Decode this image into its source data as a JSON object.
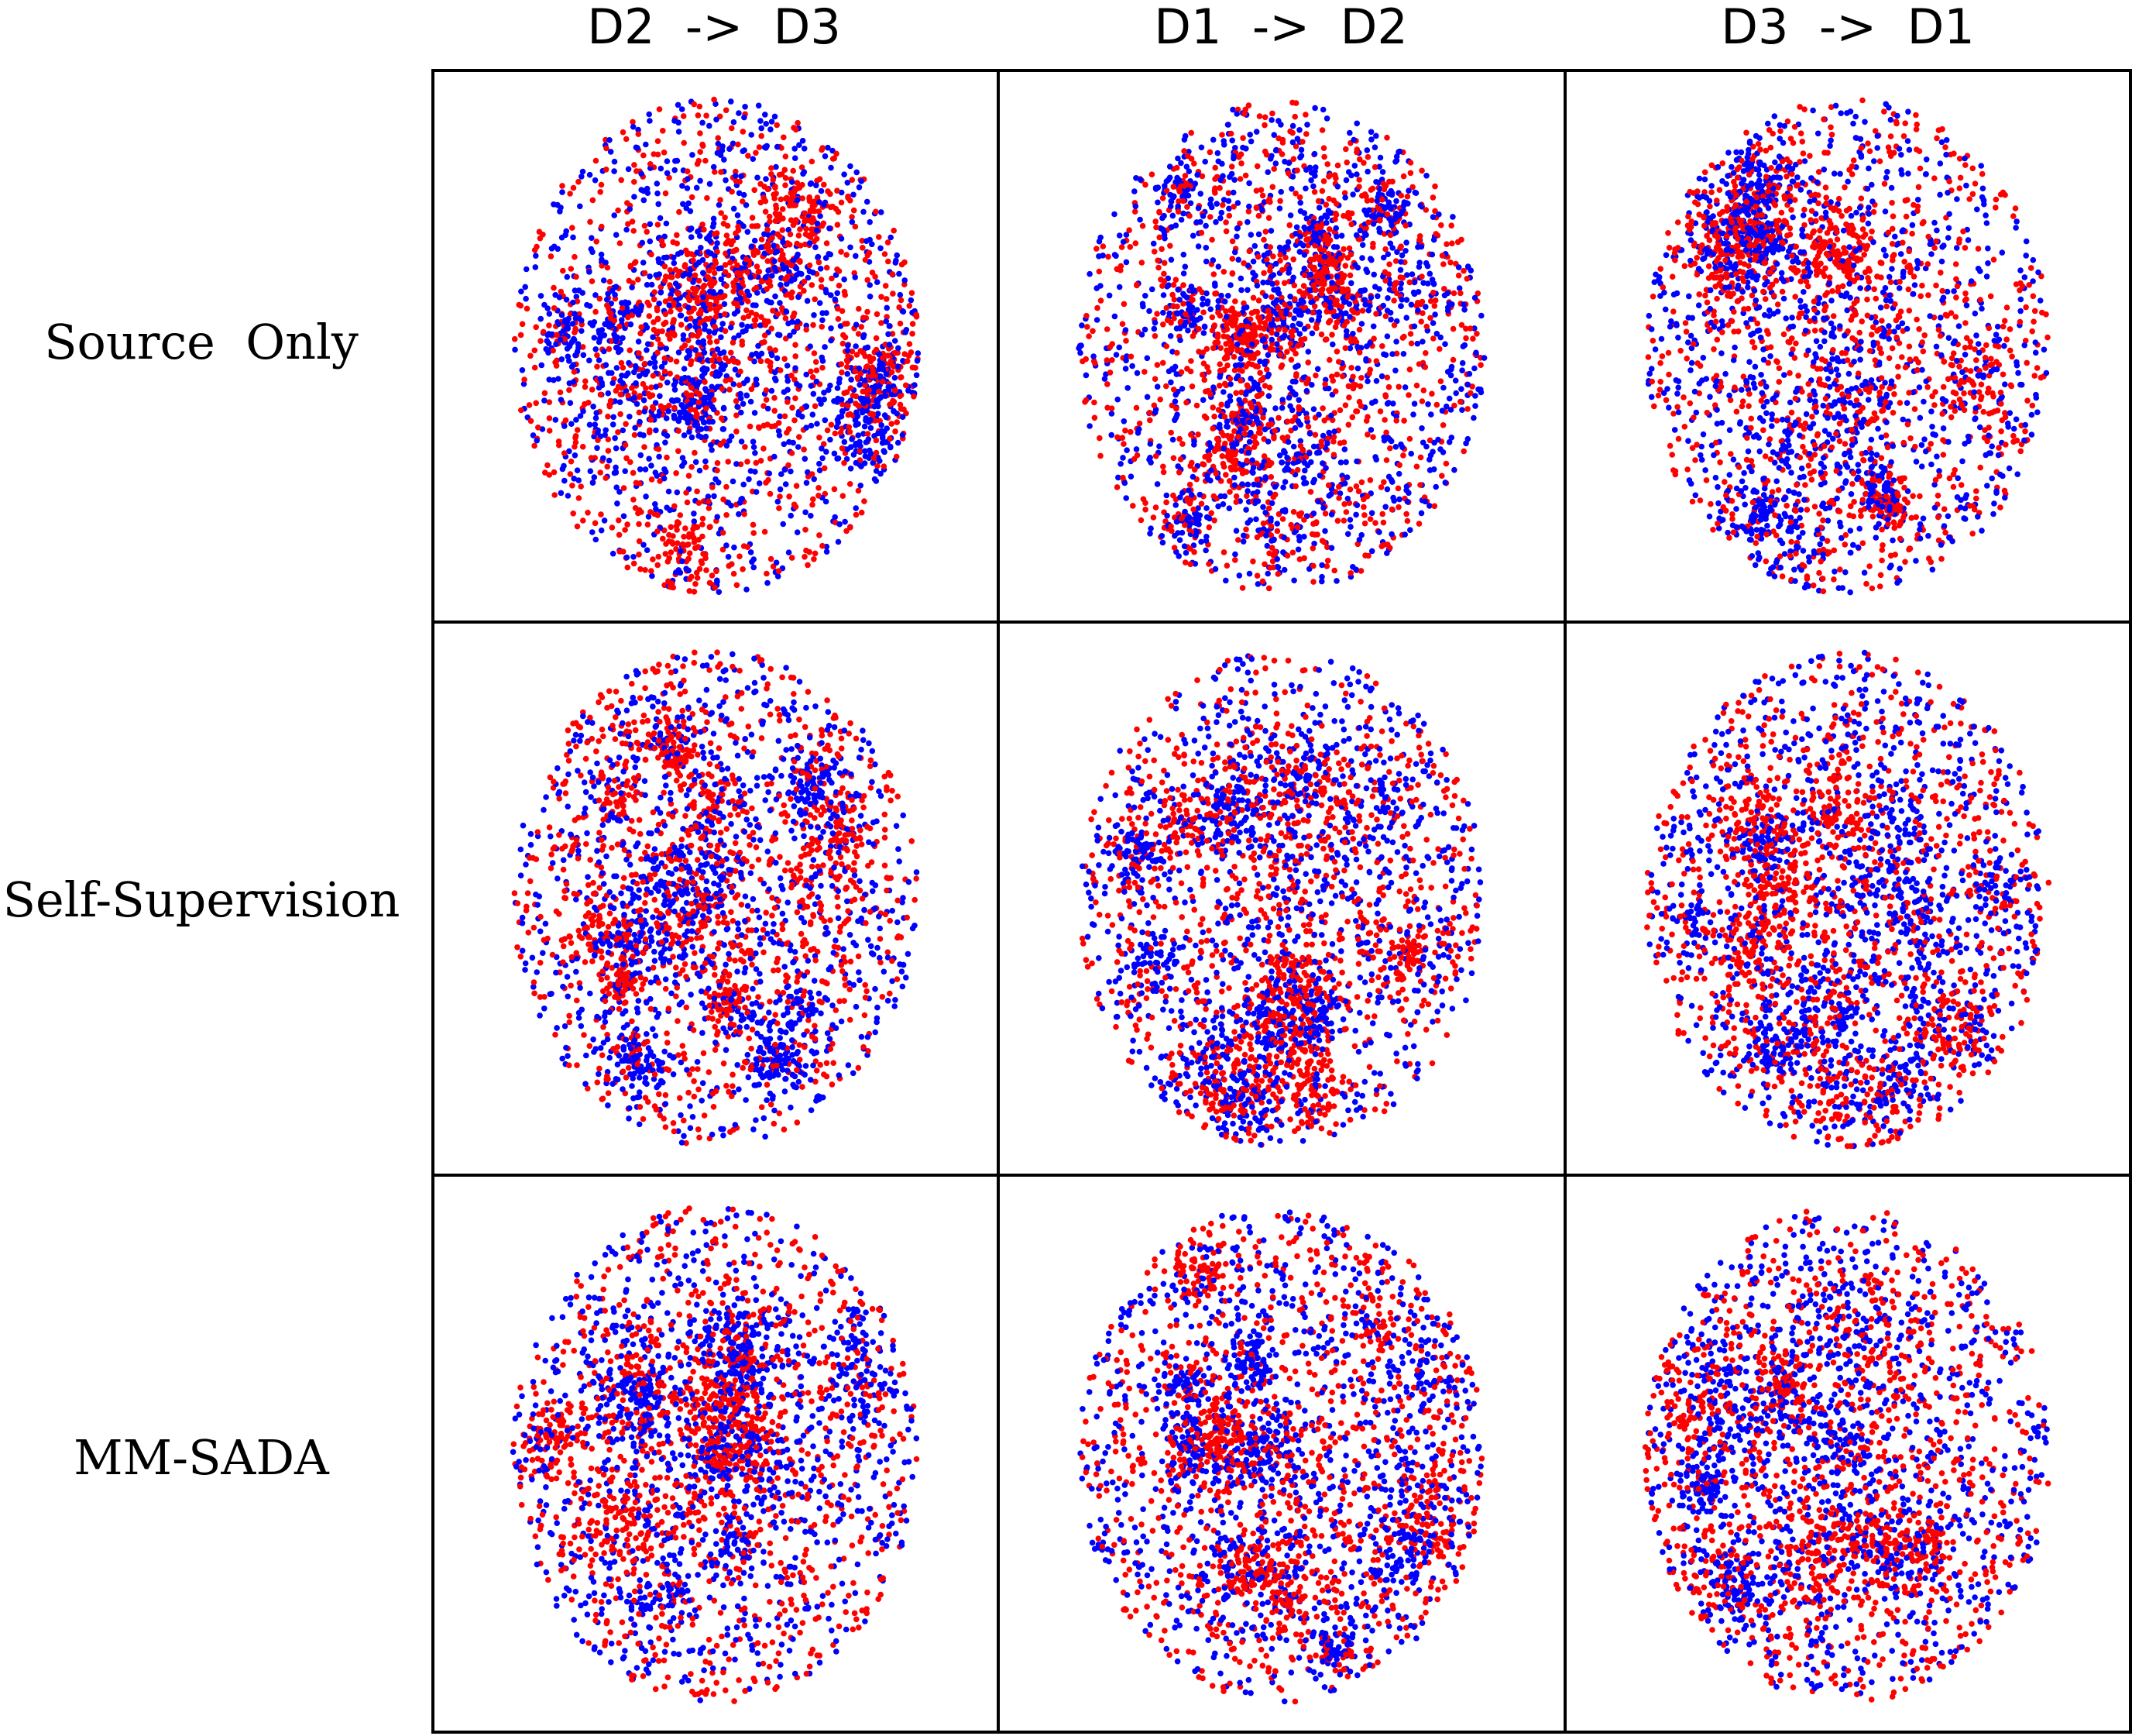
{
  "chart_data": {
    "type": "scatter",
    "title": "",
    "columns": [
      "D2  ->  D3",
      "D1  ->  D2",
      "D3  ->  D1"
    ],
    "rows": [
      "Source  Only",
      "Self-Supervision",
      "MM-SADA"
    ],
    "series": [
      {
        "color": "#ff0000"
      },
      {
        "color": "#0000ff"
      }
    ],
    "points_per_series_per_panel": 1400,
    "axes_visible": false,
    "grid": false,
    "legend": "none"
  }
}
